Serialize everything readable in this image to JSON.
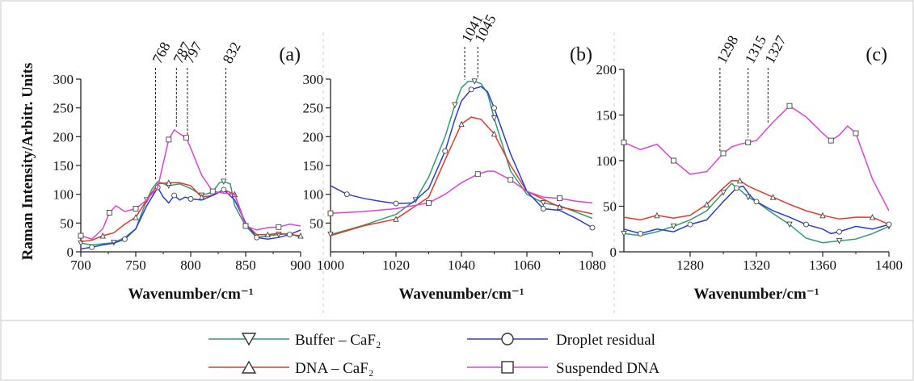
{
  "figure": {
    "ylabel": "Raman Intensity/Arbitr. Units",
    "legend": [
      {
        "name": "Buffer – CaF₂",
        "marker": "triangle-down",
        "color": "#2e9e6e"
      },
      {
        "name": "Droplet residual",
        "marker": "circle",
        "color": "#2a3ed6"
      },
      {
        "name": "DNA – CaF₂",
        "marker": "triangle-up",
        "color": "#e03a2c"
      },
      {
        "name": "Suspended DNA",
        "marker": "square",
        "color": "#e040d8"
      }
    ]
  },
  "chart_data": [
    {
      "type": "line",
      "panel_label": "(a)",
      "xlabel": "Wavenumber/cm⁻¹",
      "xlim": [
        700,
        900
      ],
      "ylim": [
        0,
        300
      ],
      "xticks": [
        700,
        750,
        800,
        850,
        900
      ],
      "yticks": [
        0,
        50,
        100,
        150,
        200,
        250,
        300
      ],
      "peaks": [
        768,
        787,
        797,
        832
      ],
      "series": [
        {
          "name": "Buffer – CaF₂",
          "x": [
            700,
            710,
            720,
            730,
            740,
            750,
            760,
            765,
            770,
            780,
            790,
            800,
            810,
            820,
            826,
            830,
            836,
            840,
            850,
            860,
            870,
            880,
            890,
            900
          ],
          "y": [
            15,
            12,
            14,
            16,
            25,
            40,
            90,
            110,
            122,
            115,
            118,
            110,
            98,
            104,
            120,
            122,
            118,
            80,
            45,
            25,
            28,
            30,
            32,
            25
          ]
        },
        {
          "name": "DNA – CaF₂",
          "x": [
            700,
            710,
            720,
            730,
            740,
            750,
            760,
            770,
            780,
            790,
            800,
            810,
            820,
            830,
            840,
            850,
            860,
            870,
            880,
            890,
            900
          ],
          "y": [
            18,
            20,
            28,
            33,
            48,
            60,
            90,
            118,
            120,
            120,
            115,
            95,
            98,
            108,
            100,
            48,
            30,
            30,
            32,
            30,
            28
          ]
        },
        {
          "name": "Droplet residual",
          "x": [
            700,
            710,
            720,
            730,
            740,
            750,
            760,
            770,
            775,
            780,
            785,
            790,
            795,
            800,
            810,
            820,
            830,
            840,
            850,
            860,
            870,
            880,
            890,
            900
          ],
          "y": [
            5,
            8,
            12,
            15,
            22,
            40,
            80,
            112,
            95,
            85,
            98,
            90,
            95,
            92,
            90,
            98,
            108,
            90,
            50,
            25,
            22,
            25,
            30,
            38
          ]
        },
        {
          "name": "Suspended DNA",
          "x": [
            700,
            710,
            720,
            726,
            732,
            740,
            750,
            760,
            770,
            780,
            785,
            790,
            796,
            800,
            810,
            820,
            830,
            840,
            850,
            860,
            870,
            880,
            890,
            900
          ],
          "y": [
            28,
            22,
            40,
            68,
            80,
            70,
            75,
            90,
            112,
            195,
            212,
            205,
            198,
            180,
            133,
            105,
            102,
            100,
            45,
            38,
            42,
            43,
            48,
            45
          ]
        }
      ]
    },
    {
      "type": "line",
      "panel_label": "(b)",
      "xlabel": "Wavenumber/cm⁻¹",
      "xlim": [
        1000,
        1080
      ],
      "ylim": [
        0,
        300
      ],
      "xticks": [
        1000,
        1020,
        1040,
        1060,
        1080
      ],
      "yticks": [
        50,
        100,
        150,
        200,
        250,
        300
      ],
      "peaks": [
        1041,
        1045
      ],
      "series": [
        {
          "name": "Buffer – CaF₂",
          "x": [
            1000,
            1010,
            1020,
            1026,
            1030,
            1035,
            1038,
            1040,
            1042,
            1044,
            1046,
            1048,
            1050,
            1055,
            1060,
            1065,
            1070,
            1080
          ],
          "y": [
            30,
            46,
            65,
            90,
            130,
            200,
            255,
            285,
            296,
            296,
            292,
            275,
            232,
            140,
            100,
            85,
            80,
            58
          ]
        },
        {
          "name": "DNA – CaF₂",
          "x": [
            1000,
            1010,
            1020,
            1030,
            1035,
            1040,
            1043,
            1046,
            1050,
            1055,
            1060,
            1070,
            1080
          ],
          "y": [
            28,
            45,
            57,
            95,
            160,
            222,
            234,
            230,
            205,
            150,
            105,
            78,
            66
          ]
        },
        {
          "name": "Droplet residual",
          "x": [
            1000,
            1005,
            1010,
            1015,
            1020,
            1025,
            1030,
            1035,
            1038,
            1040,
            1043,
            1046,
            1048,
            1050,
            1055,
            1060,
            1065,
            1070,
            1075,
            1080
          ],
          "y": [
            115,
            100,
            93,
            88,
            84,
            85,
            110,
            175,
            230,
            262,
            282,
            287,
            278,
            250,
            170,
            105,
            75,
            72,
            58,
            42
          ]
        },
        {
          "name": "Suspended DNA",
          "x": [
            1000,
            1010,
            1020,
            1030,
            1035,
            1040,
            1045,
            1048,
            1050,
            1055,
            1060,
            1065,
            1070,
            1075,
            1080
          ],
          "y": [
            67,
            70,
            75,
            85,
            100,
            120,
            135,
            140,
            140,
            125,
            105,
            95,
            93,
            88,
            85
          ]
        }
      ]
    },
    {
      "type": "line",
      "panel_label": "(c)",
      "xlabel": "Wavenumber/cm⁻¹",
      "xlim": [
        1240,
        1400
      ],
      "ylim": [
        0,
        200
      ],
      "xticks": [
        1280,
        1320,
        1360,
        1400
      ],
      "yticks": [
        0,
        50,
        100,
        150,
        200
      ],
      "peaks": [
        1298,
        1315,
        1327
      ],
      "series": [
        {
          "name": "Buffer – CaF₂",
          "x": [
            1240,
            1250,
            1260,
            1270,
            1280,
            1290,
            1300,
            1305,
            1310,
            1315,
            1320,
            1330,
            1340,
            1350,
            1360,
            1370,
            1380,
            1390,
            1400
          ],
          "y": [
            20,
            18,
            22,
            28,
            35,
            45,
            65,
            75,
            68,
            60,
            55,
            42,
            30,
            15,
            10,
            12,
            14,
            20,
            28
          ]
        },
        {
          "name": "DNA – CaF₂",
          "x": [
            1240,
            1250,
            1260,
            1270,
            1280,
            1290,
            1300,
            1305,
            1310,
            1315,
            1320,
            1330,
            1340,
            1350,
            1360,
            1370,
            1380,
            1390,
            1400
          ],
          "y": [
            38,
            35,
            40,
            37,
            40,
            52,
            70,
            78,
            78,
            72,
            68,
            60,
            52,
            45,
            40,
            36,
            38,
            38,
            30
          ]
        },
        {
          "name": "Droplet residual",
          "x": [
            1240,
            1250,
            1260,
            1270,
            1280,
            1290,
            1300,
            1308,
            1312,
            1316,
            1320,
            1330,
            1340,
            1350,
            1360,
            1365,
            1370,
            1380,
            1390,
            1400
          ],
          "y": [
            25,
            20,
            25,
            22,
            30,
            35,
            55,
            70,
            72,
            62,
            55,
            45,
            38,
            30,
            25,
            20,
            22,
            28,
            25,
            30
          ]
        },
        {
          "name": "Suspended DNA",
          "x": [
            1240,
            1250,
            1260,
            1270,
            1280,
            1290,
            1300,
            1305,
            1310,
            1315,
            1320,
            1330,
            1340,
            1350,
            1360,
            1365,
            1370,
            1375,
            1380,
            1390,
            1400
          ],
          "y": [
            120,
            112,
            118,
            100,
            85,
            88,
            108,
            115,
            118,
            120,
            122,
            142,
            160,
            148,
            130,
            122,
            128,
            138,
            130,
            80,
            45
          ]
        }
      ]
    }
  ]
}
